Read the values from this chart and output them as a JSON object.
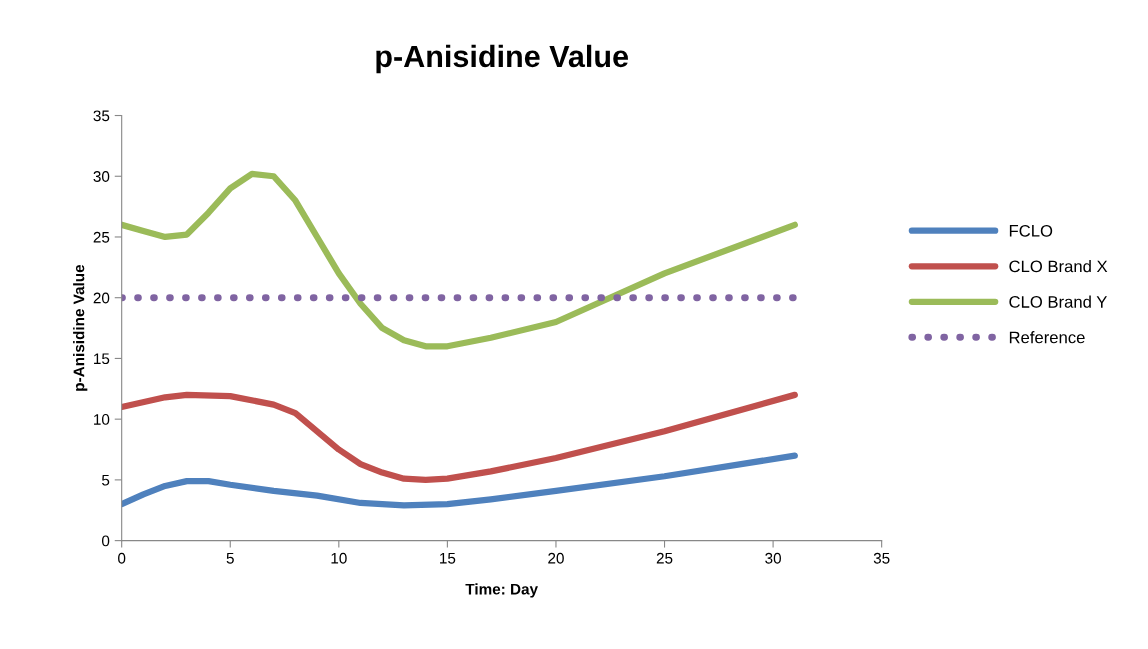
{
  "chart_data": {
    "type": "line",
    "title": "p-Anisidine Value",
    "xlabel": "Time: Day",
    "ylabel": "p-Anisidine Value",
    "xlim": [
      0,
      35
    ],
    "xticks": [
      0,
      5,
      10,
      15,
      20,
      25,
      30,
      35
    ],
    "ylim": [
      0,
      35
    ],
    "yticks": [
      0,
      5,
      10,
      15,
      20,
      25,
      30,
      35
    ],
    "grid": false,
    "legend": "right",
    "marker": "none",
    "series": [
      {
        "name": "FCLO",
        "color": "#4f81bd",
        "x": [
          0,
          1,
          2,
          3,
          4,
          5,
          7,
          9,
          11,
          13,
          15,
          17,
          20,
          25,
          31
        ],
        "values": [
          3,
          3.8,
          4.5,
          4.9,
          4.9,
          4.6,
          4.1,
          3.7,
          3.1,
          2.9,
          3.0,
          3.4,
          4.1,
          5.3,
          7
        ]
      },
      {
        "name": "CLO Brand X",
        "color": "#c0504d",
        "x": [
          0,
          2,
          3,
          5,
          7,
          8,
          9,
          10,
          11,
          12,
          13,
          14,
          15,
          17,
          20,
          25,
          31
        ],
        "values": [
          11,
          11.8,
          12,
          11.9,
          11.2,
          10.5,
          9,
          7.5,
          6.3,
          5.6,
          5.1,
          5,
          5.1,
          5.7,
          6.8,
          9,
          12
        ]
      },
      {
        "name": "CLO Brand Y",
        "color": "#9bbb59",
        "x": [
          0,
          1,
          2,
          3,
          4,
          5,
          6,
          7,
          8,
          9,
          10,
          11,
          12,
          13,
          14,
          15,
          17,
          20,
          25,
          31
        ],
        "values": [
          26,
          25.5,
          25,
          25.2,
          27,
          29,
          30.2,
          30,
          28,
          25,
          22,
          19.5,
          17.5,
          16.5,
          16,
          16,
          16.7,
          18,
          22,
          26
        ]
      },
      {
        "name": "Reference",
        "color": "#8064a2",
        "line_style": "dotted",
        "x": [
          0,
          31
        ],
        "values": [
          20,
          20
        ]
      }
    ]
  }
}
